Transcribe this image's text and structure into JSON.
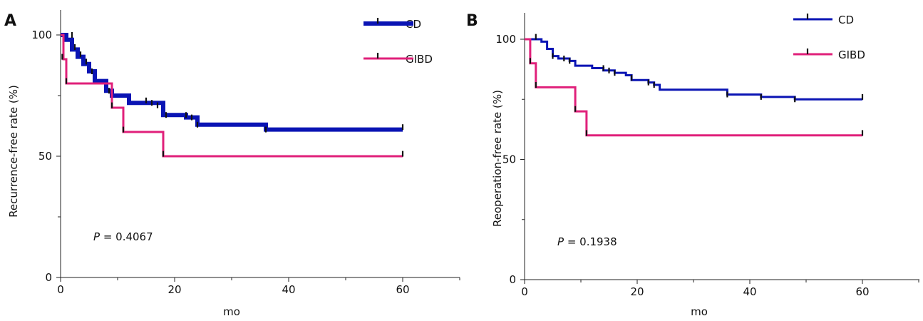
{
  "chart_data": [
    {
      "type": "line",
      "panel": "A",
      "xlabel": "mo",
      "ylabel": "Recurrence-free rate (%)",
      "xlim": [
        0,
        70
      ],
      "ylim": [
        0,
        110
      ],
      "x_ticks": [
        "0",
        "20",
        "40",
        "60"
      ],
      "y_ticks": [
        "0",
        "50",
        "100"
      ],
      "p_value": "0.4067",
      "legend_position": "top-right",
      "series": [
        {
          "name": "CD",
          "color": "#0a14b4",
          "steps": [
            [
              0,
              100
            ],
            [
              1,
              98
            ],
            [
              2,
              94
            ],
            [
              3,
              91
            ],
            [
              4,
              88
            ],
            [
              5,
              85
            ],
            [
              6,
              81
            ],
            [
              8,
              77
            ],
            [
              9,
              75
            ],
            [
              12,
              72
            ],
            [
              18,
              67
            ],
            [
              22,
              66
            ],
            [
              24,
              63
            ],
            [
              36,
              61
            ],
            [
              60,
              61
            ]
          ],
          "censors": [
            [
              2,
              100
            ],
            [
              2.5,
              95
            ],
            [
              3.5,
              92
            ],
            [
              4.5,
              89
            ],
            [
              5.5,
              85
            ],
            [
              8.5,
              77
            ],
            [
              15,
              73
            ],
            [
              16,
              72
            ],
            [
              17,
              71
            ],
            [
              18.5,
              67
            ],
            [
              22,
              67
            ],
            [
              23,
              66
            ],
            [
              24,
              63
            ],
            [
              36,
              61
            ],
            [
              60,
              62
            ]
          ]
        },
        {
          "name": "GIBD",
          "color": "#e0207a",
          "steps": [
            [
              0,
              100
            ],
            [
              0.5,
              90
            ],
            [
              1,
              80
            ],
            [
              9,
              70
            ],
            [
              11,
              60
            ],
            [
              18,
              50
            ],
            [
              60,
              50
            ]
          ],
          "censors": [
            [
              0.3,
              91
            ],
            [
              1,
              81
            ],
            [
              9,
              71
            ],
            [
              11,
              61
            ],
            [
              18,
              51
            ],
            [
              60,
              51
            ]
          ]
        }
      ]
    },
    {
      "type": "line",
      "panel": "B",
      "xlabel": "mo",
      "ylabel": "Reoperation-free rate (%)",
      "xlim": [
        0,
        70
      ],
      "ylim": [
        0,
        110
      ],
      "x_ticks": [
        "0",
        "20",
        "40",
        "60"
      ],
      "y_ticks": [
        "0",
        "50",
        "100"
      ],
      "p_value": "0.1938",
      "legend_position": "top-right",
      "series": [
        {
          "name": "CD",
          "color": "#0a14b4",
          "steps": [
            [
              0,
              100
            ],
            [
              3,
              99
            ],
            [
              4,
              96
            ],
            [
              5,
              93
            ],
            [
              6,
              92
            ],
            [
              8,
              91
            ],
            [
              9,
              89
            ],
            [
              12,
              88
            ],
            [
              14,
              87
            ],
            [
              16,
              86
            ],
            [
              18,
              85
            ],
            [
              19,
              83
            ],
            [
              22,
              82
            ],
            [
              23,
              81
            ],
            [
              24,
              79
            ],
            [
              36,
              77
            ],
            [
              42,
              76
            ],
            [
              48,
              75
            ],
            [
              60,
              75
            ]
          ],
          "censors": [
            [
              2,
              101
            ],
            [
              5,
              93
            ],
            [
              7,
              92
            ],
            [
              8,
              91
            ],
            [
              14,
              88
            ],
            [
              15,
              87
            ],
            [
              16,
              86
            ],
            [
              19,
              84
            ],
            [
              22,
              82
            ],
            [
              23,
              81
            ],
            [
              36,
              77
            ],
            [
              42,
              76
            ],
            [
              48,
              75
            ],
            [
              60,
              76
            ]
          ]
        },
        {
          "name": "GIBD",
          "color": "#e0207a",
          "steps": [
            [
              0,
              100
            ],
            [
              1,
              90
            ],
            [
              2,
              80
            ],
            [
              9,
              70
            ],
            [
              11,
              60
            ],
            [
              60,
              60
            ]
          ],
          "censors": [
            [
              1,
              91
            ],
            [
              2,
              81
            ],
            [
              9,
              71
            ],
            [
              11,
              61
            ],
            [
              60,
              61
            ]
          ]
        }
      ]
    }
  ]
}
